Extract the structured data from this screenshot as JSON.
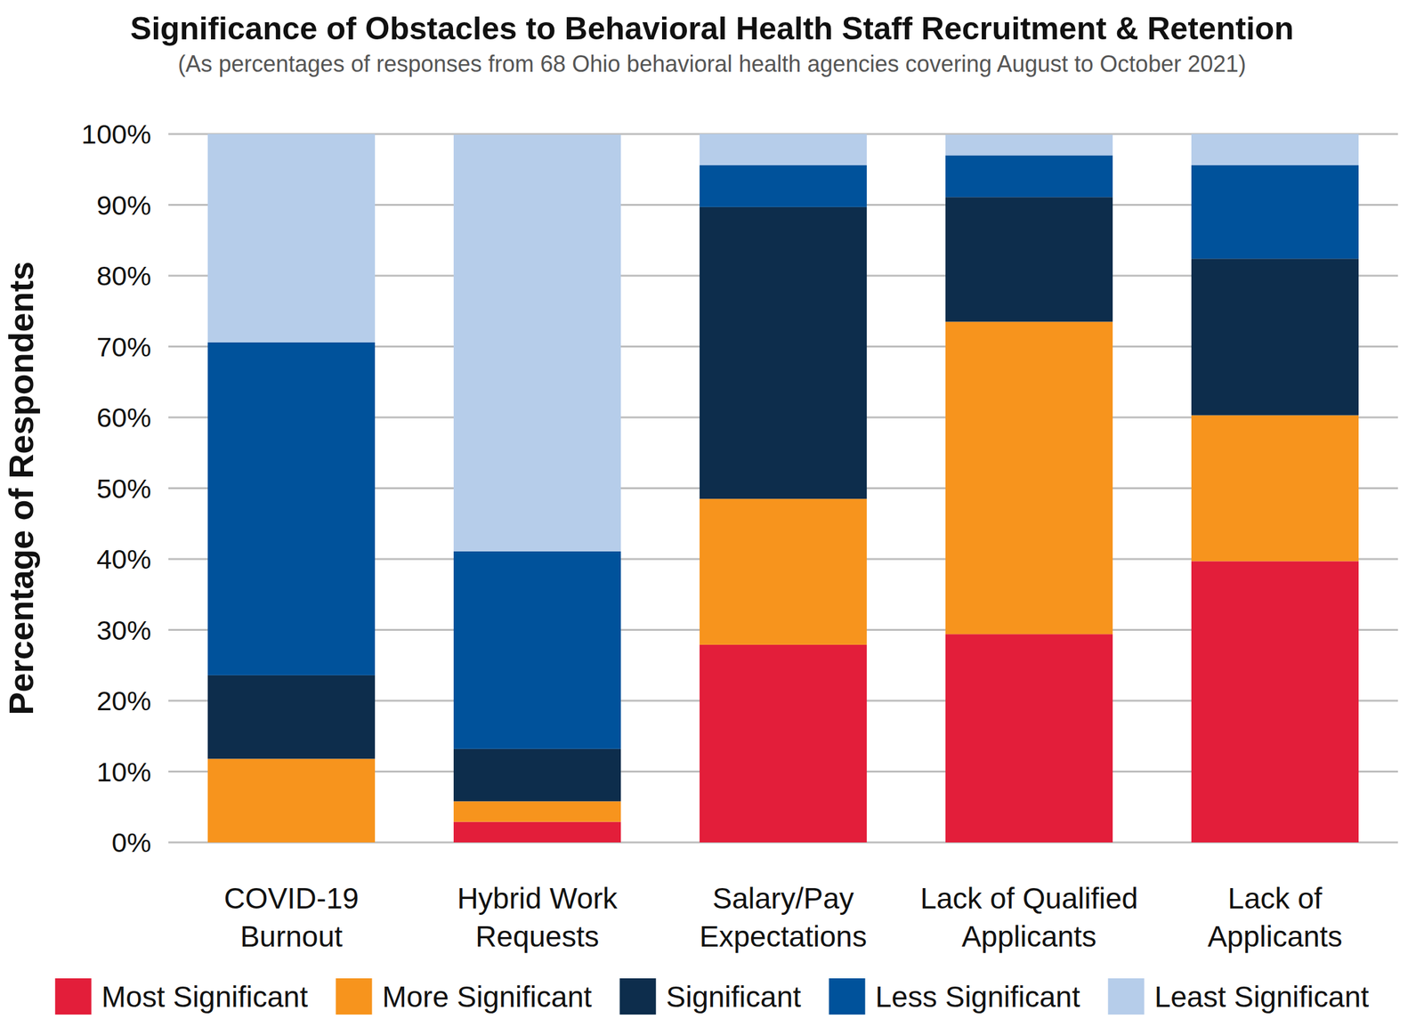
{
  "chart_data": {
    "type": "bar",
    "stacked": true,
    "title": "Significance of Obstacles to Behavioral Health Staff Recruitment & Retention",
    "subtitle": "(As percentages of responses from 68 Ohio behavioral health agencies covering August to October 2021)",
    "y_label": "Percentage of Respondents",
    "categories": [
      "COVID-19 Burnout",
      "Hybrid Work Requests",
      "Salary/Pay Expectations",
      "Lack of Qualified Applicants",
      "Lack of Applicants"
    ],
    "series": [
      {
        "name": "Most Significant",
        "color": "#e31e3a",
        "values": [
          0,
          2.9,
          27.9,
          29.4,
          39.7
        ]
      },
      {
        "name": "More Significant",
        "color": "#f7941d",
        "values": [
          11.8,
          2.9,
          20.6,
          44.1,
          20.6
        ]
      },
      {
        "name": "Significant",
        "color": "#0d2d4c",
        "values": [
          11.8,
          7.4,
          41.2,
          17.6,
          22.1
        ]
      },
      {
        "name": "Less Significant",
        "color": "#00529b",
        "values": [
          47.0,
          27.9,
          5.9,
          5.9,
          13.2
        ]
      },
      {
        "name": "Least Significant",
        "color": "#b6cdea",
        "values": [
          29.4,
          58.8,
          4.4,
          2.9,
          4.4
        ]
      }
    ],
    "ylim": [
      0,
      100
    ],
    "yticks": [
      {
        "value": 0,
        "label": "0%"
      },
      {
        "value": 10,
        "label": "10%"
      },
      {
        "value": 20,
        "label": "20%"
      },
      {
        "value": 30,
        "label": "30%"
      },
      {
        "value": 40,
        "label": "40%"
      },
      {
        "value": 50,
        "label": "50%"
      },
      {
        "value": 60,
        "label": "60%"
      },
      {
        "value": 70,
        "label": "70%"
      },
      {
        "value": 80,
        "label": "80%"
      },
      {
        "value": 90,
        "label": "90%"
      },
      {
        "value": 100,
        "label": "100%"
      }
    ],
    "grid": true,
    "legend": "bottom"
  }
}
